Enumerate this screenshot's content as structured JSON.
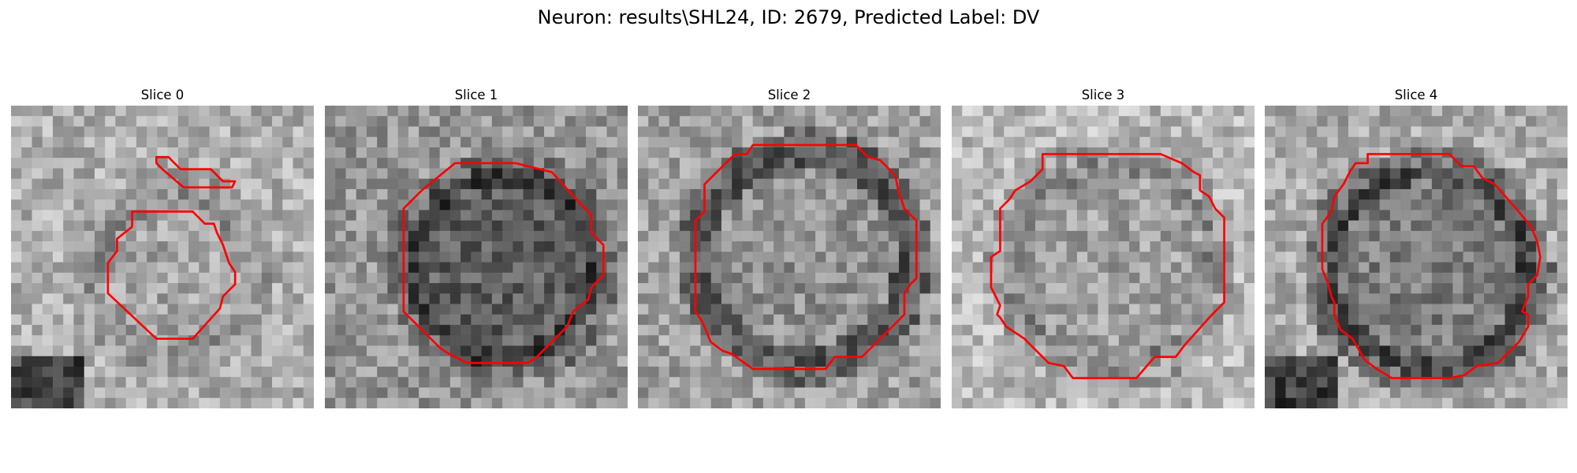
{
  "figure": {
    "title": "Neuron: results\\SHL24, ID: 2679, Predicted Label: DV"
  },
  "contour_color": "#ff0000",
  "panels": [
    {
      "title": "Slice 0",
      "contours": [
        [
          [
            4.8,
            1.7
          ],
          [
            5.2,
            1.7
          ],
          [
            5.6,
            2.1
          ],
          [
            6.6,
            2.1
          ],
          [
            7.0,
            2.5
          ],
          [
            7.4,
            2.5
          ],
          [
            7.3,
            2.7
          ],
          [
            5.7,
            2.7
          ],
          [
            5.0,
            2.1
          ],
          [
            4.8,
            1.9
          ]
        ],
        [
          [
            4.0,
            3.5
          ],
          [
            6.0,
            3.5
          ],
          [
            6.4,
            3.9
          ],
          [
            6.7,
            3.9
          ],
          [
            6.8,
            4.2
          ],
          [
            7.0,
            4.6
          ],
          [
            7.2,
            5.2
          ],
          [
            7.4,
            5.5
          ],
          [
            7.4,
            5.9
          ],
          [
            7.0,
            6.3
          ],
          [
            6.9,
            6.7
          ],
          [
            6.0,
            7.7
          ],
          [
            4.8,
            7.7
          ],
          [
            3.2,
            6.2
          ],
          [
            3.2,
            5.2
          ],
          [
            3.5,
            4.8
          ],
          [
            3.5,
            4.4
          ],
          [
            4.0,
            4.0
          ]
        ]
      ]
    },
    {
      "title": "Slice 1",
      "contours": [
        [
          [
            4.3,
            1.9
          ],
          [
            6.3,
            1.9
          ],
          [
            7.5,
            2.2
          ],
          [
            8.4,
            3.2
          ],
          [
            8.8,
            3.6
          ],
          [
            8.8,
            4.2
          ],
          [
            9.2,
            4.6
          ],
          [
            9.2,
            5.6
          ],
          [
            8.8,
            6.0
          ],
          [
            8.7,
            6.4
          ],
          [
            8.2,
            6.8
          ],
          [
            8.0,
            7.3
          ],
          [
            7.0,
            8.3
          ],
          [
            6.7,
            8.5
          ],
          [
            4.7,
            8.5
          ],
          [
            4.1,
            8.2
          ],
          [
            3.8,
            8.0
          ],
          [
            3.2,
            7.4
          ],
          [
            2.6,
            6.8
          ],
          [
            2.6,
            3.4
          ],
          [
            3.2,
            2.8
          ]
        ]
      ]
    },
    {
      "title": "Slice 2",
      "contours": [
        [
          [
            3.6,
            1.6
          ],
          [
            3.8,
            1.3
          ],
          [
            7.2,
            1.3
          ],
          [
            7.6,
            1.7
          ],
          [
            8.0,
            1.8
          ],
          [
            8.5,
            2.3
          ],
          [
            8.6,
            2.8
          ],
          [
            8.8,
            3.4
          ],
          [
            9.2,
            3.8
          ],
          [
            9.2,
            5.7
          ],
          [
            9.0,
            5.9
          ],
          [
            8.8,
            6.2
          ],
          [
            8.8,
            6.9
          ],
          [
            7.4,
            8.3
          ],
          [
            6.5,
            8.3
          ],
          [
            6.2,
            8.7
          ],
          [
            3.8,
            8.7
          ],
          [
            3.1,
            8.2
          ],
          [
            2.8,
            8.1
          ],
          [
            2.4,
            7.8
          ],
          [
            2.2,
            7.3
          ],
          [
            2.1,
            7.1
          ],
          [
            1.9,
            6.8
          ],
          [
            1.9,
            3.8
          ],
          [
            2.2,
            3.5
          ],
          [
            2.2,
            2.6
          ],
          [
            2.8,
            2.0
          ],
          [
            3.2,
            1.6
          ]
        ]
      ]
    },
    {
      "title": "Slice 3",
      "contours": [
        [
          [
            2.6,
            2.5
          ],
          [
            3.0,
            2.1
          ],
          [
            3.0,
            1.6
          ],
          [
            6.9,
            1.6
          ],
          [
            7.6,
            1.9
          ],
          [
            8.0,
            2.2
          ],
          [
            8.2,
            2.3
          ],
          [
            8.2,
            2.8
          ],
          [
            8.5,
            3.0
          ],
          [
            8.7,
            3.4
          ],
          [
            9.0,
            3.7
          ],
          [
            9.0,
            6.5
          ],
          [
            8.6,
            6.9
          ],
          [
            7.7,
            7.9
          ],
          [
            7.4,
            8.3
          ],
          [
            6.7,
            8.3
          ],
          [
            6.1,
            9.0
          ],
          [
            4.0,
            9.0
          ],
          [
            3.7,
            8.6
          ],
          [
            3.2,
            8.5
          ],
          [
            2.4,
            7.7
          ],
          [
            1.8,
            7.3
          ],
          [
            1.6,
            7.0
          ],
          [
            1.5,
            6.9
          ],
          [
            1.6,
            6.6
          ],
          [
            1.4,
            6.2
          ],
          [
            1.3,
            6.0
          ],
          [
            1.3,
            5.4
          ],
          [
            1.3,
            5.0
          ],
          [
            1.6,
            4.8
          ],
          [
            1.6,
            3.4
          ],
          [
            1.9,
            3.1
          ],
          [
            2.1,
            2.8
          ]
        ]
      ]
    },
    {
      "title": "Slice 4",
      "contours": [
        [
          [
            3.0,
            1.9
          ],
          [
            3.4,
            1.9
          ],
          [
            3.4,
            1.6
          ],
          [
            6.1,
            1.6
          ],
          [
            6.5,
            2.0
          ],
          [
            6.9,
            2.0
          ],
          [
            7.2,
            2.4
          ],
          [
            7.6,
            2.6
          ],
          [
            8.3,
            3.4
          ],
          [
            8.8,
            4.0
          ],
          [
            9.0,
            4.5
          ],
          [
            9.1,
            5.0
          ],
          [
            9.0,
            5.6
          ],
          [
            8.7,
            5.9
          ],
          [
            8.7,
            6.3
          ],
          [
            8.5,
            6.8
          ],
          [
            8.7,
            6.9
          ],
          [
            8.7,
            7.3
          ],
          [
            8.4,
            7.8
          ],
          [
            8.1,
            8.1
          ],
          [
            7.7,
            8.5
          ],
          [
            7.0,
            8.6
          ],
          [
            6.6,
            8.9
          ],
          [
            6.1,
            9.0
          ],
          [
            4.2,
            9.0
          ],
          [
            3.7,
            8.7
          ],
          [
            3.3,
            8.4
          ],
          [
            2.9,
            7.7
          ],
          [
            2.5,
            7.4
          ],
          [
            2.3,
            6.9
          ],
          [
            2.3,
            6.5
          ],
          [
            2.2,
            6.3
          ],
          [
            2.1,
            5.9
          ],
          [
            1.9,
            5.4
          ],
          [
            1.9,
            3.9
          ],
          [
            2.2,
            3.5
          ],
          [
            2.3,
            3.0
          ],
          [
            2.6,
            2.6
          ],
          [
            2.8,
            2.2
          ]
        ]
      ]
    }
  ]
}
